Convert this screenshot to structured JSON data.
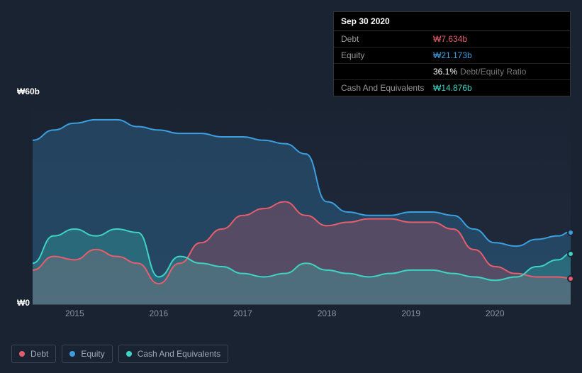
{
  "tooltip": {
    "date": "Sep 30 2020",
    "rows": [
      {
        "label": "Debt",
        "value": "₩7.634b",
        "color": "#e85d6b"
      },
      {
        "label": "Equity",
        "value": "₩21.173b",
        "color": "#3b9fe0"
      },
      {
        "label": "",
        "value": "36.1%",
        "suffix": "Debt/Equity Ratio",
        "color": "#ffffff"
      },
      {
        "label": "Cash And Equivalents",
        "value": "₩14.876b",
        "color": "#3dd4c4"
      }
    ]
  },
  "chart": {
    "type": "area",
    "background_color": "#1a2332",
    "grid_color": "#3a4556",
    "y_axis": {
      "min": 0,
      "max": 60,
      "ticks": [
        {
          "v": 0,
          "label": "₩0"
        },
        {
          "v": 60,
          "label": "₩60b"
        }
      ],
      "label_color": "#ffffff",
      "label_fontsize": 12
    },
    "x_axis": {
      "min": 2014.5,
      "max": 2020.9,
      "ticks": [
        2015,
        2016,
        2017,
        2018,
        2019,
        2020
      ],
      "label_color": "#8a95a5",
      "label_fontsize": 12
    },
    "series": {
      "equity": {
        "label": "Equity",
        "color": "#3b9fe0",
        "fill_opacity": 0.25,
        "line_width": 2,
        "points": [
          [
            2014.5,
            48
          ],
          [
            2014.75,
            51
          ],
          [
            2015,
            53
          ],
          [
            2015.25,
            54
          ],
          [
            2015.5,
            54
          ],
          [
            2015.75,
            52
          ],
          [
            2016,
            51
          ],
          [
            2016.25,
            50
          ],
          [
            2016.5,
            50
          ],
          [
            2016.75,
            49
          ],
          [
            2017,
            49
          ],
          [
            2017.25,
            48
          ],
          [
            2017.5,
            47
          ],
          [
            2017.75,
            44
          ],
          [
            2018,
            30
          ],
          [
            2018.25,
            27
          ],
          [
            2018.5,
            26
          ],
          [
            2018.75,
            26
          ],
          [
            2019,
            27
          ],
          [
            2019.25,
            27
          ],
          [
            2019.5,
            26
          ],
          [
            2019.75,
            22
          ],
          [
            2020,
            18
          ],
          [
            2020.25,
            17
          ],
          [
            2020.5,
            19
          ],
          [
            2020.75,
            20
          ],
          [
            2020.9,
            21.2
          ]
        ]
      },
      "debt": {
        "label": "Debt",
        "color": "#e85d6b",
        "fill_opacity": 0.25,
        "line_width": 2,
        "points": [
          [
            2014.5,
            10
          ],
          [
            2014.75,
            14
          ],
          [
            2015,
            13
          ],
          [
            2015.25,
            16
          ],
          [
            2015.5,
            14
          ],
          [
            2015.75,
            12
          ],
          [
            2016,
            6
          ],
          [
            2016.25,
            12
          ],
          [
            2016.5,
            18
          ],
          [
            2016.75,
            22
          ],
          [
            2017,
            26
          ],
          [
            2017.25,
            28
          ],
          [
            2017.5,
            30
          ],
          [
            2017.75,
            26
          ],
          [
            2018,
            23
          ],
          [
            2018.25,
            24
          ],
          [
            2018.5,
            25
          ],
          [
            2018.75,
            25
          ],
          [
            2019,
            24
          ],
          [
            2019.25,
            24
          ],
          [
            2019.5,
            22
          ],
          [
            2019.75,
            16
          ],
          [
            2020,
            11
          ],
          [
            2020.25,
            9
          ],
          [
            2020.5,
            8
          ],
          [
            2020.75,
            8
          ],
          [
            2020.9,
            7.6
          ]
        ]
      },
      "cash": {
        "label": "Cash And Equivalents",
        "color": "#3dd4c4",
        "fill_opacity": 0.25,
        "line_width": 2,
        "points": [
          [
            2014.5,
            12
          ],
          [
            2014.75,
            20
          ],
          [
            2015,
            22
          ],
          [
            2015.25,
            20
          ],
          [
            2015.5,
            22
          ],
          [
            2015.75,
            21
          ],
          [
            2016,
            8
          ],
          [
            2016.25,
            14
          ],
          [
            2016.5,
            12
          ],
          [
            2016.75,
            11
          ],
          [
            2017,
            9
          ],
          [
            2017.25,
            8
          ],
          [
            2017.5,
            9
          ],
          [
            2017.75,
            12
          ],
          [
            2018,
            10
          ],
          [
            2018.25,
            9
          ],
          [
            2018.5,
            8
          ],
          [
            2018.75,
            9
          ],
          [
            2019,
            10
          ],
          [
            2019.25,
            10
          ],
          [
            2019.5,
            9
          ],
          [
            2019.75,
            8
          ],
          [
            2020,
            7
          ],
          [
            2020.25,
            8
          ],
          [
            2020.5,
            11
          ],
          [
            2020.75,
            13
          ],
          [
            2020.9,
            14.9
          ]
        ]
      }
    },
    "legend_items": [
      {
        "key": "debt",
        "label": "Debt",
        "color": "#e85d6b"
      },
      {
        "key": "equity",
        "label": "Equity",
        "color": "#3b9fe0"
      },
      {
        "key": "cash",
        "label": "Cash And Equivalents",
        "color": "#3dd4c4"
      }
    ]
  }
}
